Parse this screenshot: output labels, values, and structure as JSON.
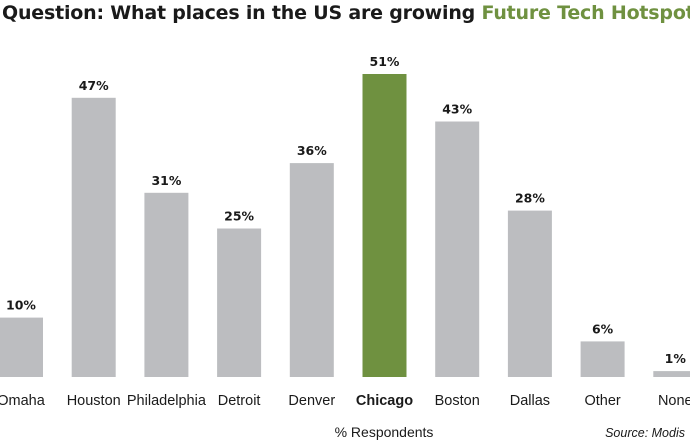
{
  "title": {
    "prefix": "Question: What places in the US are growing ",
    "highlight": "Future Tech Hotspots",
    "suffix": "?"
  },
  "colors": {
    "bar": "#bcbdc0",
    "highlight_bar": "#6f9140",
    "accent_text": "#6f9140",
    "text": "#1a1a1a"
  },
  "chart_data": {
    "type": "bar",
    "categories": [
      "Omaha",
      "Houston",
      "Philadelphia",
      "Detroit",
      "Denver",
      "Chicago",
      "Boston",
      "Dallas",
      "Other",
      "None"
    ],
    "values": [
      10,
      47,
      31,
      25,
      36,
      51,
      43,
      28,
      6,
      1
    ],
    "value_labels": [
      "10%",
      "47%",
      "31%",
      "25%",
      "36%",
      "51%",
      "43%",
      "28%",
      "6%",
      "1%"
    ],
    "highlighted_category": "Chicago",
    "title": "Question: What places in the US are growing Future Tech Hotspots?",
    "xlabel": "% Respondents",
    "ylabel": "",
    "ylim": [
      0,
      51
    ],
    "grid": false,
    "legend": "none",
    "source": "Source: Modis"
  }
}
